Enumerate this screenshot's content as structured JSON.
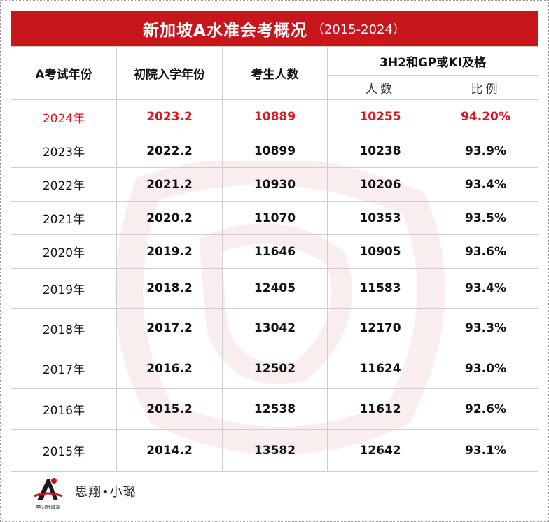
{
  "title": {
    "main": "新加坡A水准会考概况",
    "range": "（2015-2024）"
  },
  "headers": {
    "exam_year": "A考试年份",
    "jc_year": "初院入学年份",
    "candidates": "考生人数",
    "pass_group": "3H2和GP或KI及格",
    "pass_count": "人数",
    "pass_ratio": "比例"
  },
  "rows": [
    {
      "exam_year": "2024年",
      "jc_year": "2023.2",
      "candidates": "10889",
      "pass_count": "10255",
      "pass_ratio": "94.20%"
    },
    {
      "exam_year": "2023年",
      "jc_year": "2022.2",
      "candidates": "10899",
      "pass_count": "10238",
      "pass_ratio": "93.9%"
    },
    {
      "exam_year": "2022年",
      "jc_year": "2021.2",
      "candidates": "10930",
      "pass_count": "10206",
      "pass_ratio": "93.4%"
    },
    {
      "exam_year": "2021年",
      "jc_year": "2020.2",
      "candidates": "11070",
      "pass_count": "10353",
      "pass_ratio": "93.5%"
    },
    {
      "exam_year": "2020年",
      "jc_year": "2019.2",
      "candidates": "11646",
      "pass_count": "10905",
      "pass_ratio": "93.6%"
    },
    {
      "exam_year": "2019年",
      "jc_year": "2018.2",
      "candidates": "12405",
      "pass_count": "11583",
      "pass_ratio": "93.4%"
    },
    {
      "exam_year": "2018年",
      "jc_year": "2017.2",
      "candidates": "13042",
      "pass_count": "12170",
      "pass_ratio": "93.3%"
    },
    {
      "exam_year": "2017年",
      "jc_year": "2016.2",
      "candidates": "12502",
      "pass_count": "11624",
      "pass_ratio": "93.0%"
    },
    {
      "exam_year": "2016年",
      "jc_year": "2015.2",
      "candidates": "12538",
      "pass_count": "11612",
      "pass_ratio": "92.6%"
    },
    {
      "exam_year": "2015年",
      "jc_year": "2014.2",
      "candidates": "13582",
      "pass_count": "12642",
      "pass_ratio": "93.1%"
    }
  ],
  "footer": {
    "brand": "思翔•小璐",
    "logo_text": "学习师城富"
  },
  "colors": {
    "title_bg": "#c8161d",
    "highlight": "#e0141e"
  }
}
